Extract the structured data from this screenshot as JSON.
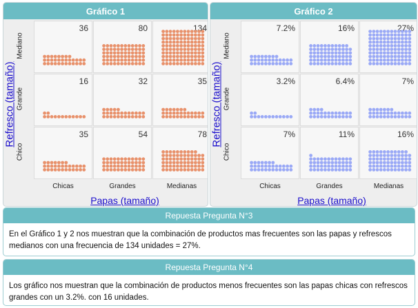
{
  "charts": [
    {
      "header": "Gráfico 1",
      "y_title": "Refresco (tamaño)",
      "x_title": "Papas (tamaño)",
      "rows": [
        "Mediano",
        "Grande",
        "Chico"
      ],
      "cols": [
        "Chicas",
        "Grandes",
        "Medianas"
      ],
      "color": "#e8916b",
      "values": [
        [
          "36",
          "80",
          "134"
        ],
        [
          "16",
          "32",
          "35"
        ],
        [
          "35",
          "54",
          "78"
        ]
      ]
    },
    {
      "header": "Gráfico 2",
      "y_title": "Refresco (tamaño)",
      "x_title": "Papas (tamaño)",
      "rows": [
        "Mediano",
        "Grande",
        "Chico"
      ],
      "cols": [
        "Chicas",
        "Grandes",
        "Medianas"
      ],
      "color": "#9aa9f6",
      "values": [
        [
          "7.2%",
          "16%",
          "27%"
        ],
        [
          "3.2%",
          "6.4%",
          "7%"
        ],
        [
          "7%",
          "11%",
          "16%"
        ]
      ]
    }
  ],
  "chart_data": [
    {
      "type": "heatmap",
      "title": "Gráfico 1",
      "xlabel": "Papas (tamaño)",
      "ylabel": "Refresco (tamaño)",
      "x": [
        "Chicas",
        "Grandes",
        "Medianas"
      ],
      "y": [
        "Mediano",
        "Grande",
        "Chico"
      ],
      "values": [
        [
          36,
          80,
          134
        ],
        [
          16,
          32,
          35
        ],
        [
          35,
          54,
          78
        ]
      ]
    },
    {
      "type": "heatmap",
      "title": "Gráfico 2",
      "xlabel": "Papas (tamaño)",
      "ylabel": "Refresco (tamaño)",
      "x": [
        "Chicas",
        "Grandes",
        "Medianas"
      ],
      "y": [
        "Mediano",
        "Grande",
        "Chico"
      ],
      "values": [
        [
          7.2,
          16,
          27
        ],
        [
          3.2,
          6.4,
          7
        ],
        [
          7,
          11,
          16
        ]
      ]
    }
  ],
  "answers": [
    {
      "header": "Repuesta Pregunta N°3",
      "text": "En el Gráfico 1 y 2  nos muestran que la combinación de productos mas frecuentes son las papas y refrescos medianos con una frecuencia de 134 unidades = 27%."
    },
    {
      "header": "Repuesta Pregunta N°4",
      "text": "Los gráfico nos muestran que la combinación de productos menos frecuentes son las papas chicas con refrescos grandes con un 3.2%.  con 16 unidades."
    }
  ]
}
